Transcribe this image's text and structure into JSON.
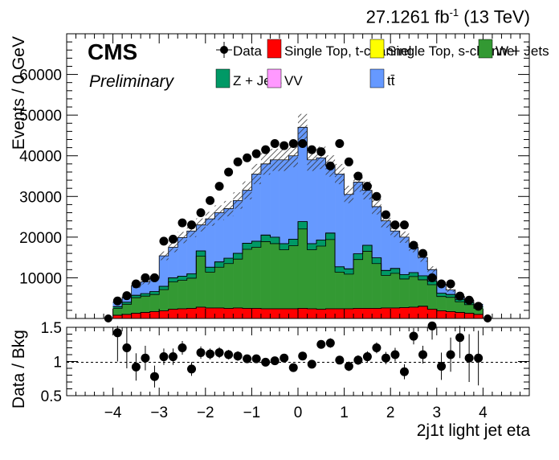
{
  "header": {
    "lumi": "27.1261 fb",
    "lumi_exp": "-1",
    "energy": "(13 TeV)"
  },
  "labels": {
    "cms": "CMS",
    "prelim": "Preliminary"
  },
  "colors": {
    "data": "#000000",
    "single_top_t": "#ff0000",
    "single_top_s": "#ffff00",
    "w_jets": "#339933",
    "z_jets": "#009966",
    "vv": "#ff99ff",
    "ttbar": "#6699ff"
  },
  "legend": {
    "data": "Data",
    "single_top_t": "Single Top, t-channel",
    "single_top_s": "Single Top, s-channel",
    "w_jets": "W + Jets",
    "z_jets": "Z + Jets",
    "vv": "VV",
    "ttbar": "tt̄"
  },
  "chart_data": [
    {
      "type": "bar",
      "stacked": true,
      "xlabel": "2j1t light jet eta",
      "ylabel": "Events / 0 GeV",
      "xlim": [
        -5,
        5
      ],
      "ylim": [
        0,
        70000
      ],
      "xticks": [
        "−4",
        "−3",
        "−2",
        "−1",
        "0",
        "1",
        "2",
        "3",
        "4"
      ],
      "yticks": [
        "10000",
        "20000",
        "30000",
        "40000",
        "50000",
        "60000"
      ],
      "bin_edges": [
        -4.0,
        -3.8,
        -3.6,
        -3.4,
        -3.2,
        -3.0,
        -2.8,
        -2.6,
        -2.4,
        -2.2,
        -2.0,
        -1.8,
        -1.6,
        -1.4,
        -1.2,
        -1.0,
        -0.8,
        -0.6,
        -0.4,
        -0.2,
        0.0,
        0.2,
        0.4,
        0.6,
        0.8,
        1.0,
        1.2,
        1.4,
        1.6,
        1.8,
        2.0,
        2.2,
        2.4,
        2.6,
        2.8,
        3.0,
        3.2,
        3.4,
        3.6,
        3.8,
        4.0
      ],
      "series": [
        {
          "name": "Single Top, t-channel",
          "values": [
            800,
            1000,
            1300,
            1500,
            1700,
            1900,
            2300,
            2400,
            2500,
            2800,
            2600,
            2600,
            2500,
            2600,
            2500,
            2500,
            2400,
            2400,
            2400,
            2400,
            2500,
            2400,
            2300,
            2400,
            2400,
            2400,
            2500,
            2500,
            2500,
            2600,
            2600,
            2700,
            2800,
            3000,
            2300,
            1900,
            1700,
            1500,
            1300,
            1000
          ]
        },
        {
          "name": "Single Top, s-channel",
          "values": [
            0,
            0,
            0,
            0,
            0,
            0,
            0,
            0,
            0,
            0,
            0,
            0,
            0,
            0,
            0,
            0,
            0,
            0,
            0,
            0,
            0,
            0,
            0,
            0,
            0,
            0,
            0,
            0,
            0,
            0,
            0,
            0,
            0,
            0,
            0,
            0,
            0,
            0,
            0,
            0
          ]
        },
        {
          "name": "W + Jets",
          "values": [
            1700,
            2500,
            3800,
            4000,
            4200,
            5200,
            6700,
            7000,
            7400,
            12500,
            8800,
            10000,
            11000,
            12000,
            14500,
            15000,
            16500,
            16000,
            14500,
            15500,
            19500,
            14500,
            15500,
            17000,
            9000,
            8500,
            12000,
            14000,
            11000,
            8000,
            8500,
            7000,
            7500,
            6500,
            6000,
            3500,
            3500,
            2600,
            2100,
            1500
          ]
        },
        {
          "name": "Z + Jets",
          "values": [
            400,
            500,
            600,
            600,
            700,
            800,
            1000,
            1000,
            1100,
            1300,
            1200,
            1300,
            1300,
            1400,
            1500,
            1500,
            1600,
            1600,
            1500,
            1600,
            1800,
            1500,
            1500,
            1600,
            1300,
            1300,
            1400,
            1500,
            1400,
            1200,
            1200,
            1100,
            1000,
            1000,
            900,
            800,
            700,
            600,
            500,
            400
          ]
        },
        {
          "name": "VV",
          "values": [
            0,
            0,
            0,
            0,
            0,
            0,
            0,
            0,
            0,
            0,
            0,
            0,
            0,
            0,
            0,
            0,
            0,
            0,
            0,
            0,
            0,
            0,
            0,
            0,
            0,
            0,
            0,
            0,
            0,
            0,
            0,
            0,
            0,
            0,
            0,
            0,
            0,
            0,
            0,
            0
          ]
        },
        {
          "name": "tt̄",
          "values": [
            1100,
            1300,
            2400,
            2900,
            3300,
            7500,
            7500,
            9500,
            10500,
            6400,
            11900,
            12100,
            12200,
            13000,
            13000,
            16500,
            17500,
            19000,
            20600,
            20500,
            23200,
            20600,
            20200,
            16500,
            22800,
            18300,
            17600,
            13500,
            12600,
            12200,
            9200,
            9200,
            6200,
            4500,
            2800,
            2200,
            1100,
            700,
            600,
            600
          ]
        }
      ],
      "data_points": {
        "name": "Data",
        "x": [
          -3.9,
          -3.7,
          -3.5,
          -3.3,
          -3.1,
          -2.9,
          -2.7,
          -2.5,
          -2.3,
          -2.1,
          -1.9,
          -1.7,
          -1.5,
          -1.3,
          -1.1,
          -0.9,
          -0.7,
          -0.5,
          -0.3,
          -0.1,
          0.1,
          0.3,
          0.5,
          0.7,
          0.9,
          1.1,
          1.3,
          1.5,
          1.7,
          1.9,
          2.1,
          2.3,
          2.5,
          2.7,
          2.9,
          3.1,
          3.3,
          3.5,
          3.7,
          3.9
        ],
        "y": [
          4300,
          5600,
          8500,
          10000,
          10000,
          19000,
          19500,
          23500,
          23000,
          26000,
          29000,
          32500,
          36000,
          38500,
          39500,
          40500,
          41500,
          43000,
          42500,
          43000,
          43000,
          41500,
          41000,
          37500,
          43000,
          38500,
          35000,
          32500,
          30000,
          25500,
          23000,
          23000,
          18000,
          16000,
          10000,
          8500,
          8500,
          5500,
          4500,
          3000
        ]
      }
    },
    {
      "type": "scatter",
      "ylabel": "Data / Bkg",
      "xlim": [
        -5,
        5
      ],
      "ylim": [
        0.5,
        1.5
      ],
      "yticks": [
        "0.5",
        "1",
        "1.5"
      ],
      "x": [
        -3.9,
        -3.7,
        -3.5,
        -3.3,
        -3.1,
        -2.9,
        -2.7,
        -2.5,
        -2.3,
        -2.1,
        -1.9,
        -1.7,
        -1.5,
        -1.3,
        -1.1,
        -0.9,
        -0.7,
        -0.5,
        -0.3,
        -0.1,
        0.1,
        0.3,
        0.5,
        0.7,
        0.9,
        1.1,
        1.3,
        1.5,
        1.7,
        1.9,
        2.1,
        2.3,
        2.5,
        2.7,
        2.9,
        3.1,
        3.3,
        3.5,
        3.7,
        3.9
      ],
      "y": [
        1.42,
        1.2,
        0.92,
        1.05,
        0.78,
        1.07,
        1.07,
        1.2,
        0.89,
        1.13,
        1.11,
        1.13,
        1.1,
        1.08,
        1.04,
        1.04,
        0.99,
        1.01,
        1.05,
        0.91,
        1.08,
        0.96,
        1.25,
        1.27,
        1.02,
        0.93,
        1.02,
        1.07,
        1.2,
        1.05,
        1.1,
        0.85,
        1.37,
        1.1,
        1.52,
        0.93,
        1.1,
        1.35,
        1.05,
        1.05
      ],
      "yerr": [
        0.42,
        0.3,
        0.2,
        0.18,
        0.16,
        0.12,
        0.12,
        0.1,
        0.1,
        0.09,
        0.08,
        0.08,
        0.07,
        0.07,
        0.06,
        0.06,
        0.06,
        0.06,
        0.06,
        0.06,
        0.06,
        0.06,
        0.06,
        0.07,
        0.06,
        0.07,
        0.07,
        0.08,
        0.08,
        0.09,
        0.1,
        0.11,
        0.12,
        0.13,
        0.2,
        0.2,
        0.25,
        0.3,
        0.35,
        0.4
      ],
      "reference_line": 1
    }
  ]
}
